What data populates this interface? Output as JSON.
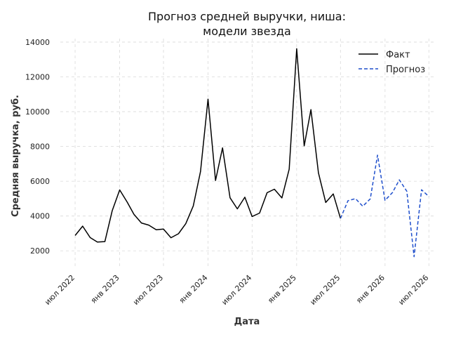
{
  "chart_data": {
    "type": "line",
    "title_lines": [
      "Прогноз средней выручки, ниша:",
      "модели звезда"
    ],
    "xlabel": "Дата",
    "ylabel": "Средняя выручка, руб.",
    "xlim": [
      "2022-05-01",
      "2026-08-01"
    ],
    "ylim": [
      1000,
      14200
    ],
    "yticks": [
      2000,
      4000,
      6000,
      8000,
      10000,
      12000,
      14000
    ],
    "xticks": [
      {
        "date": "2022-07-01",
        "label": "июл 2022"
      },
      {
        "date": "2023-01-01",
        "label": "янв 2023"
      },
      {
        "date": "2023-07-01",
        "label": "июл 2023"
      },
      {
        "date": "2024-01-01",
        "label": "янв 2024"
      },
      {
        "date": "2024-07-01",
        "label": "июл 2024"
      },
      {
        "date": "2025-01-01",
        "label": "янв 2025"
      },
      {
        "date": "2025-07-01",
        "label": "июл 2025"
      },
      {
        "date": "2026-01-01",
        "label": "янв 2026"
      },
      {
        "date": "2026-07-01",
        "label": "июл 2026"
      }
    ],
    "grid": true,
    "legend_position": "top-right",
    "series": [
      {
        "name": "Факт",
        "color": "#000000",
        "style": "solid",
        "x": [
          "2022-07-01",
          "2022-08-01",
          "2022-09-01",
          "2022-10-01",
          "2022-11-01",
          "2022-12-01",
          "2023-01-01",
          "2023-02-01",
          "2023-03-01",
          "2023-04-01",
          "2023-05-01",
          "2023-06-01",
          "2023-07-01",
          "2023-08-01",
          "2023-09-01",
          "2023-10-01",
          "2023-11-01",
          "2023-12-01",
          "2024-01-01",
          "2024-02-01",
          "2024-03-01",
          "2024-04-01",
          "2024-05-01",
          "2024-06-01",
          "2024-07-01",
          "2024-08-01",
          "2024-09-01",
          "2024-10-01",
          "2024-11-01",
          "2024-12-01",
          "2025-01-01",
          "2025-02-01",
          "2025-03-01",
          "2025-04-01",
          "2025-05-01",
          "2025-06-01",
          "2025-07-01"
        ],
        "values": [
          2880,
          3420,
          2760,
          2500,
          2530,
          4300,
          5500,
          4800,
          4100,
          3600,
          3480,
          3210,
          3250,
          2750,
          2980,
          3560,
          4580,
          6560,
          10720,
          6040,
          7920,
          5050,
          4410,
          5080,
          3970,
          4170,
          5340,
          5540,
          5040,
          6690,
          13620,
          8030,
          10120,
          6480,
          4780,
          5270,
          3860
        ]
      },
      {
        "name": "Прогноз",
        "color": "#1f4fcc",
        "style": "dashed",
        "x": [
          "2025-07-01",
          "2025-08-01",
          "2025-09-01",
          "2025-10-01",
          "2025-11-01",
          "2025-12-01",
          "2026-01-01",
          "2026-02-01",
          "2026-03-01",
          "2026-04-01",
          "2026-05-01",
          "2026-06-01",
          "2026-07-01"
        ],
        "values": [
          3860,
          4880,
          5000,
          4560,
          4990,
          7500,
          4900,
          5350,
          6080,
          5420,
          1660,
          5510,
          5120
        ]
      }
    ]
  }
}
